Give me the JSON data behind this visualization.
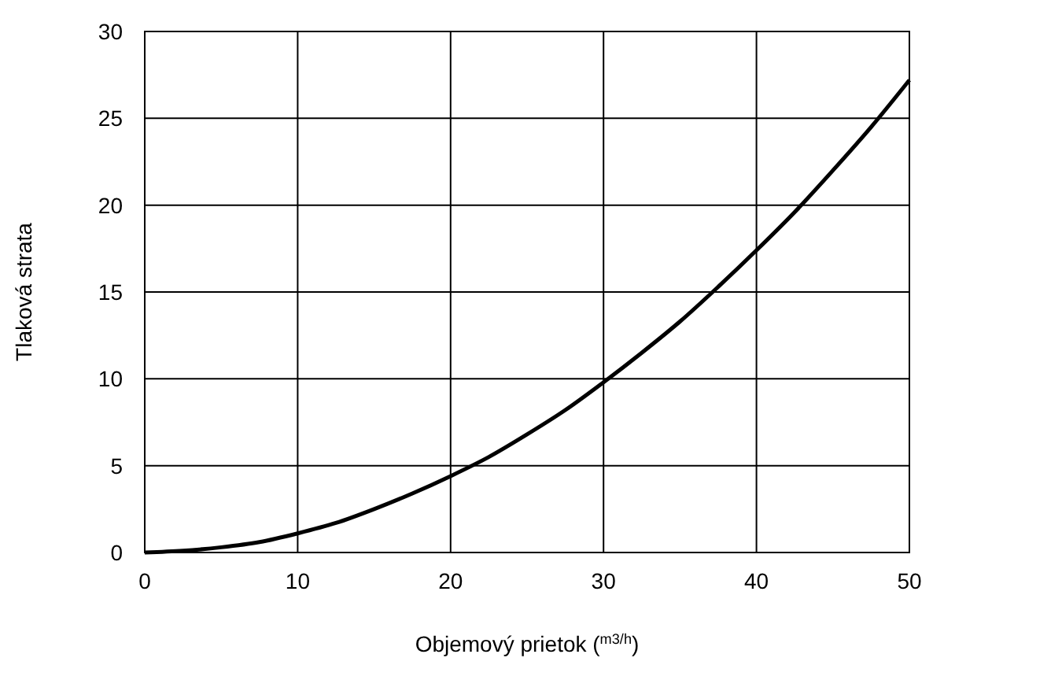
{
  "chart_data": {
    "type": "line",
    "xlabel": "Objemový prietok ($^{m3/h}$)",
    "ylabel": "Tlaková strata",
    "x": [
      0,
      2.5,
      5,
      7.5,
      10,
      12.5,
      15,
      17.5,
      20,
      22.5,
      25,
      27.5,
      30,
      32.5,
      35,
      37.5,
      40,
      42.5,
      45,
      47.5,
      50
    ],
    "series": [
      {
        "color": "#000000",
        "values": [
          0,
          0.1,
          0.3,
          0.6,
          1.1,
          1.7,
          2.5,
          3.4,
          4.4,
          5.5,
          6.8,
          8.2,
          9.8,
          11.5,
          13.3,
          15.3,
          17.4,
          19.6,
          22,
          24.5,
          27.2
        ]
      }
    ],
    "xlim": [
      0,
      50
    ],
    "ylim": [
      0,
      30
    ],
    "xticks": [
      0,
      10,
      20,
      30,
      40,
      50
    ],
    "yticks": [
      0,
      5,
      10,
      15,
      20,
      25,
      30
    ],
    "grid": true,
    "marker": "none",
    "line_style": "solid"
  }
}
